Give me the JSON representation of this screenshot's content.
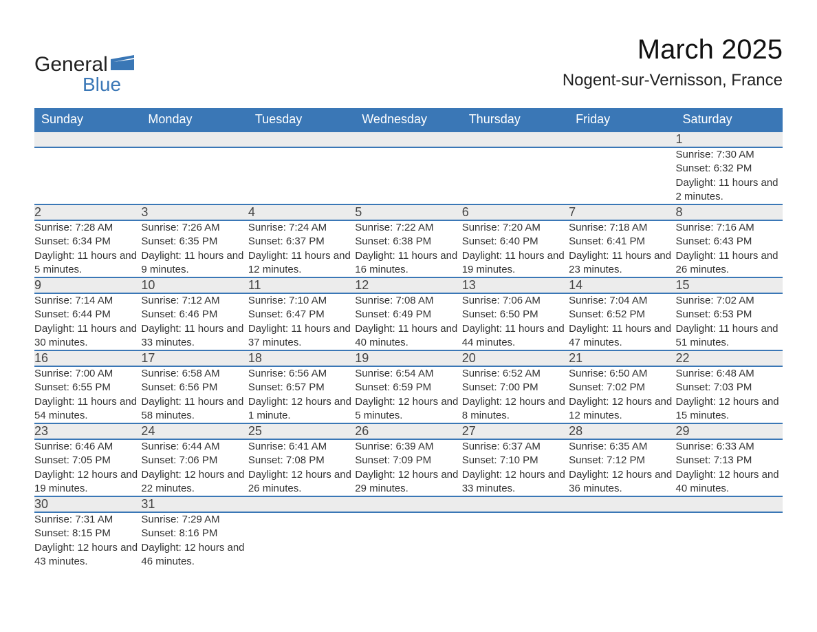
{
  "brand": {
    "word1": "General",
    "word2": "Blue"
  },
  "title": "March 2025",
  "location": "Nogent-sur-Vernisson, France",
  "colors": {
    "header_bg": "#3a77b6",
    "header_text": "#ffffff",
    "daynum_bg": "#ececec",
    "row_divider": "#3a77b6",
    "body_text": "#333333",
    "logo_accent": "#3a77b6"
  },
  "columns": [
    "Sunday",
    "Monday",
    "Tuesday",
    "Wednesday",
    "Thursday",
    "Friday",
    "Saturday"
  ],
  "labels": {
    "sunrise": "Sunrise:",
    "sunset": "Sunset:",
    "daylight": "Daylight:"
  },
  "weeks": [
    [
      null,
      null,
      null,
      null,
      null,
      null,
      {
        "n": "1",
        "sr": "7:30 AM",
        "ss": "6:32 PM",
        "dl": "11 hours and 2 minutes."
      }
    ],
    [
      {
        "n": "2",
        "sr": "7:28 AM",
        "ss": "6:34 PM",
        "dl": "11 hours and 5 minutes."
      },
      {
        "n": "3",
        "sr": "7:26 AM",
        "ss": "6:35 PM",
        "dl": "11 hours and 9 minutes."
      },
      {
        "n": "4",
        "sr": "7:24 AM",
        "ss": "6:37 PM",
        "dl": "11 hours and 12 minutes."
      },
      {
        "n": "5",
        "sr": "7:22 AM",
        "ss": "6:38 PM",
        "dl": "11 hours and 16 minutes."
      },
      {
        "n": "6",
        "sr": "7:20 AM",
        "ss": "6:40 PM",
        "dl": "11 hours and 19 minutes."
      },
      {
        "n": "7",
        "sr": "7:18 AM",
        "ss": "6:41 PM",
        "dl": "11 hours and 23 minutes."
      },
      {
        "n": "8",
        "sr": "7:16 AM",
        "ss": "6:43 PM",
        "dl": "11 hours and 26 minutes."
      }
    ],
    [
      {
        "n": "9",
        "sr": "7:14 AM",
        "ss": "6:44 PM",
        "dl": "11 hours and 30 minutes."
      },
      {
        "n": "10",
        "sr": "7:12 AM",
        "ss": "6:46 PM",
        "dl": "11 hours and 33 minutes."
      },
      {
        "n": "11",
        "sr": "7:10 AM",
        "ss": "6:47 PM",
        "dl": "11 hours and 37 minutes."
      },
      {
        "n": "12",
        "sr": "7:08 AM",
        "ss": "6:49 PM",
        "dl": "11 hours and 40 minutes."
      },
      {
        "n": "13",
        "sr": "7:06 AM",
        "ss": "6:50 PM",
        "dl": "11 hours and 44 minutes."
      },
      {
        "n": "14",
        "sr": "7:04 AM",
        "ss": "6:52 PM",
        "dl": "11 hours and 47 minutes."
      },
      {
        "n": "15",
        "sr": "7:02 AM",
        "ss": "6:53 PM",
        "dl": "11 hours and 51 minutes."
      }
    ],
    [
      {
        "n": "16",
        "sr": "7:00 AM",
        "ss": "6:55 PM",
        "dl": "11 hours and 54 minutes."
      },
      {
        "n": "17",
        "sr": "6:58 AM",
        "ss": "6:56 PM",
        "dl": "11 hours and 58 minutes."
      },
      {
        "n": "18",
        "sr": "6:56 AM",
        "ss": "6:57 PM",
        "dl": "12 hours and 1 minute."
      },
      {
        "n": "19",
        "sr": "6:54 AM",
        "ss": "6:59 PM",
        "dl": "12 hours and 5 minutes."
      },
      {
        "n": "20",
        "sr": "6:52 AM",
        "ss": "7:00 PM",
        "dl": "12 hours and 8 minutes."
      },
      {
        "n": "21",
        "sr": "6:50 AM",
        "ss": "7:02 PM",
        "dl": "12 hours and 12 minutes."
      },
      {
        "n": "22",
        "sr": "6:48 AM",
        "ss": "7:03 PM",
        "dl": "12 hours and 15 minutes."
      }
    ],
    [
      {
        "n": "23",
        "sr": "6:46 AM",
        "ss": "7:05 PM",
        "dl": "12 hours and 19 minutes."
      },
      {
        "n": "24",
        "sr": "6:44 AM",
        "ss": "7:06 PM",
        "dl": "12 hours and 22 minutes."
      },
      {
        "n": "25",
        "sr": "6:41 AM",
        "ss": "7:08 PM",
        "dl": "12 hours and 26 minutes."
      },
      {
        "n": "26",
        "sr": "6:39 AM",
        "ss": "7:09 PM",
        "dl": "12 hours and 29 minutes."
      },
      {
        "n": "27",
        "sr": "6:37 AM",
        "ss": "7:10 PM",
        "dl": "12 hours and 33 minutes."
      },
      {
        "n": "28",
        "sr": "6:35 AM",
        "ss": "7:12 PM",
        "dl": "12 hours and 36 minutes."
      },
      {
        "n": "29",
        "sr": "6:33 AM",
        "ss": "7:13 PM",
        "dl": "12 hours and 40 minutes."
      }
    ],
    [
      {
        "n": "30",
        "sr": "7:31 AM",
        "ss": "8:15 PM",
        "dl": "12 hours and 43 minutes."
      },
      {
        "n": "31",
        "sr": "7:29 AM",
        "ss": "8:16 PM",
        "dl": "12 hours and 46 minutes."
      },
      null,
      null,
      null,
      null,
      null
    ]
  ]
}
